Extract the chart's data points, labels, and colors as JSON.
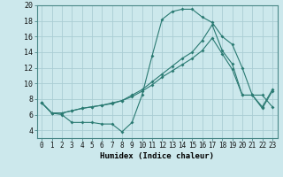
{
  "xlabel": "Humidex (Indice chaleur)",
  "bg_color": "#cce8ec",
  "grid_color": "#aacdd4",
  "line_color": "#2a7a72",
  "xlim": [
    -0.5,
    23.5
  ],
  "ylim": [
    3.0,
    20.0
  ],
  "xticks": [
    0,
    1,
    2,
    3,
    4,
    5,
    6,
    7,
    8,
    9,
    10,
    11,
    12,
    13,
    14,
    15,
    16,
    17,
    18,
    19,
    20,
    21,
    22,
    23
  ],
  "yticks": [
    4,
    6,
    8,
    10,
    12,
    14,
    16,
    18,
    20
  ],
  "line1_x": [
    0,
    1,
    2,
    3,
    4,
    5,
    6,
    7,
    8,
    9,
    10,
    11,
    12,
    13,
    14,
    15,
    16,
    17,
    18,
    19,
    20,
    21,
    22,
    23
  ],
  "line1_y": [
    7.5,
    6.2,
    6.2,
    6.5,
    6.8,
    7.0,
    7.2,
    7.4,
    7.8,
    8.3,
    9.0,
    9.8,
    10.8,
    11.6,
    12.4,
    13.2,
    14.2,
    15.8,
    13.8,
    11.8,
    8.5,
    8.5,
    6.8,
    9.0
  ],
  "line2_x": [
    0,
    1,
    2,
    3,
    4,
    5,
    6,
    7,
    8,
    9,
    10,
    11,
    12,
    13,
    14,
    15,
    16,
    17,
    18,
    19,
    20,
    21,
    22,
    23
  ],
  "line2_y": [
    7.5,
    6.2,
    6.2,
    6.5,
    6.8,
    7.0,
    7.2,
    7.5,
    7.8,
    8.5,
    9.2,
    10.2,
    11.2,
    12.2,
    13.2,
    14.0,
    15.5,
    17.5,
    14.2,
    12.5,
    8.5,
    8.5,
    7.0,
    9.2
  ],
  "line3_x": [
    0,
    1,
    2,
    3,
    4,
    5,
    6,
    7,
    8,
    9,
    10,
    11,
    12,
    13,
    14,
    15,
    16,
    17,
    18,
    19,
    20,
    21,
    22,
    23
  ],
  "line3_y": [
    7.5,
    6.2,
    6.0,
    5.0,
    5.0,
    5.0,
    4.8,
    4.8,
    3.8,
    5.0,
    8.5,
    13.5,
    18.2,
    19.2,
    19.5,
    19.5,
    18.5,
    17.8,
    16.0,
    15.0,
    12.0,
    8.5,
    8.5,
    7.0
  ],
  "tick_fontsize": 5.5,
  "xlabel_fontsize": 6.5,
  "marker_size": 2.0,
  "linewidth": 0.8
}
